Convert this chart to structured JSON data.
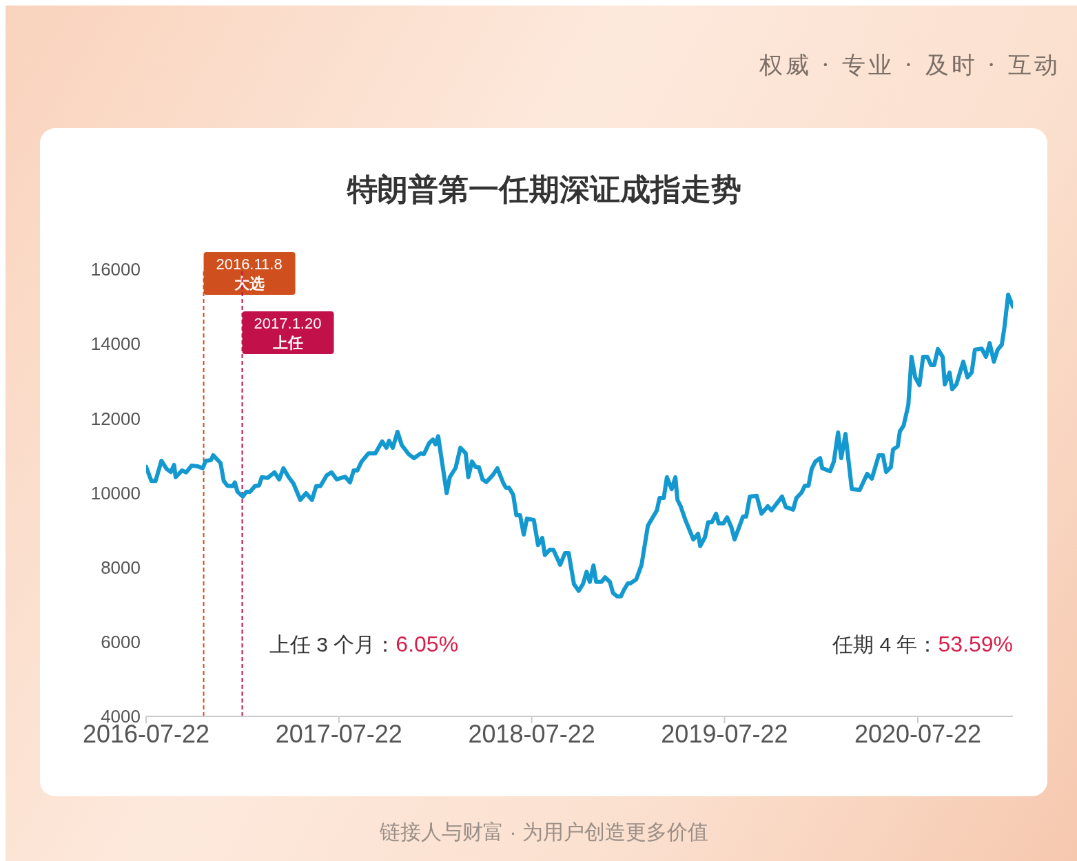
{
  "chart_data": {
    "type": "line",
    "title": "特朗普第一任期深证成指走势",
    "x": [
      "2016-07-22",
      "2016-08-01",
      "2016-08-09",
      "2016-08-20",
      "2016-08-30",
      "2016-09-07",
      "2016-09-13",
      "2016-09-16",
      "2016-09-28",
      "2016-10-06",
      "2016-10-16",
      "2016-10-28",
      "2016-11-06",
      "2016-11-12",
      "2016-11-22",
      "2016-11-26",
      "2016-12-10",
      "2016-12-16",
      "2016-12-23",
      "2017-01-02",
      "2017-01-06",
      "2017-01-11",
      "2017-01-21",
      "2017-01-28",
      "2017-02-04",
      "2017-02-13",
      "2017-02-21",
      "2017-02-26",
      "2017-03-09",
      "2017-03-22",
      "2017-03-31",
      "2017-04-08",
      "2017-04-18",
      "2017-04-27",
      "2017-05-10",
      "2017-05-21",
      "2017-06-01",
      "2017-06-09",
      "2017-06-17",
      "2017-06-29",
      "2017-07-08",
      "2017-07-18",
      "2017-07-26",
      "2017-08-03",
      "2017-08-12",
      "2017-08-19",
      "2017-08-26",
      "2017-09-03",
      "2017-09-16",
      "2017-09-29",
      "2017-10-12",
      "2017-10-20",
      "2017-10-25",
      "2017-11-01",
      "2017-11-10",
      "2017-11-18",
      "2017-12-01",
      "2017-12-11",
      "2017-12-24",
      "2017-12-30",
      "2018-01-09",
      "2018-01-16",
      "2018-01-21",
      "2018-01-26",
      "2018-02-11",
      "2018-02-17",
      "2018-02-28",
      "2018-03-09",
      "2018-03-19",
      "2018-03-24",
      "2018-03-31",
      "2018-04-07",
      "2018-04-13",
      "2018-04-20",
      "2018-04-27",
      "2018-05-09",
      "2018-05-18",
      "2018-05-29",
      "2018-06-03",
      "2018-06-09",
      "2018-06-17",
      "2018-06-23",
      "2018-06-30",
      "2018-07-07",
      "2018-07-13",
      "2018-07-26",
      "2018-08-03",
      "2018-08-11",
      "2018-08-16",
      "2018-08-25",
      "2018-09-01",
      "2018-09-14",
      "2018-09-23",
      "2018-09-30",
      "2018-10-10",
      "2018-10-19",
      "2018-10-27",
      "2018-11-03",
      "2018-11-09",
      "2018-11-16",
      "2018-11-21",
      "2018-12-01",
      "2018-12-08",
      "2018-12-17",
      "2018-12-23",
      "2018-12-31",
      "2019-01-07",
      "2019-01-12",
      "2019-01-20",
      "2019-01-25",
      "2019-02-05",
      "2019-02-15",
      "2019-02-27",
      "2019-03-16",
      "2019-03-21",
      "2019-03-29",
      "2019-04-04",
      "2019-04-13",
      "2019-04-20",
      "2019-04-24",
      "2019-04-30",
      "2019-05-09",
      "2019-05-24",
      "2019-06-02",
      "2019-06-06",
      "2019-06-15",
      "2019-06-21",
      "2019-06-28",
      "2019-07-06",
      "2019-07-11",
      "2019-07-20",
      "2019-07-27",
      "2019-08-04",
      "2019-08-10",
      "2019-08-26",
      "2019-09-01",
      "2019-09-08",
      "2019-09-21",
      "2019-09-30",
      "2019-10-12",
      "2019-10-19",
      "2019-11-08",
      "2019-11-15",
      "2019-11-29",
      "2019-12-05",
      "2019-12-15",
      "2019-12-21",
      "2019-12-28",
      "2020-01-03",
      "2020-01-10",
      "2020-01-19",
      "2020-01-23",
      "2020-02-07",
      "2020-02-14",
      "2020-02-22",
      "2020-02-28",
      "2020-03-07",
      "2020-03-19",
      "2020-04-03",
      "2020-04-17",
      "2020-04-26",
      "2020-05-09",
      "2020-05-17",
      "2020-05-23",
      "2020-06-01",
      "2020-06-05",
      "2020-06-14",
      "2020-06-18",
      "2020-06-25",
      "2020-07-04",
      "2020-07-10",
      "2020-07-17",
      "2020-07-25",
      "2020-08-01",
      "2020-08-09",
      "2020-08-16",
      "2020-08-22",
      "2020-08-29",
      "2020-09-07",
      "2020-09-11",
      "2020-09-20",
      "2020-09-25",
      "2020-10-03",
      "2020-10-16",
      "2020-10-24",
      "2020-11-01",
      "2020-11-07",
      "2020-11-20",
      "2020-11-28",
      "2020-12-05",
      "2020-12-13",
      "2020-12-20",
      "2020-12-28",
      "2021-01-02",
      "2021-01-09",
      "2021-01-18"
    ],
    "series": [
      {
        "color": "#1399cf",
        "values": [
          10700,
          10320,
          10320,
          10860,
          10640,
          10560,
          10750,
          10420,
          10600,
          10550,
          10730,
          10710,
          10660,
          10860,
          10880,
          11010,
          10800,
          10320,
          10190,
          10180,
          10280,
          10030,
          9900,
          10030,
          10030,
          10180,
          10200,
          10420,
          10400,
          10550,
          10360,
          10660,
          10420,
          10250,
          9810,
          9990,
          9810,
          10180,
          10180,
          10470,
          10550,
          10360,
          10400,
          10430,
          10280,
          10600,
          10600,
          10840,
          11060,
          11060,
          11380,
          11210,
          11400,
          11210,
          11640,
          11280,
          11040,
          10930,
          11060,
          11040,
          11340,
          11430,
          11300,
          11520,
          9990,
          10420,
          10670,
          11210,
          11060,
          10420,
          10840,
          10690,
          10690,
          10360,
          10290,
          10470,
          10660,
          10270,
          10140,
          10140,
          9950,
          9400,
          9400,
          8880,
          9310,
          9270,
          8600,
          8790,
          8330,
          8470,
          8470,
          8070,
          8380,
          8380,
          7550,
          7370,
          7550,
          7880,
          7610,
          8050,
          7610,
          7610,
          7730,
          7610,
          7310,
          7220,
          7220,
          7380,
          7570,
          7570,
          7680,
          8070,
          9120,
          9530,
          9860,
          9860,
          10420,
          10100,
          10420,
          9810,
          9640,
          9270,
          8750,
          8900,
          8570,
          8810,
          9210,
          9210,
          9440,
          9180,
          9180,
          9340,
          9080,
          8750,
          9360,
          9360,
          9900,
          9920,
          9440,
          9640,
          9530,
          9900,
          9620,
          9550,
          9860,
          10010,
          10190,
          10190,
          10640,
          10840,
          10930,
          10660,
          10580,
          10840,
          11620,
          10930,
          11580,
          10100,
          10080,
          10510,
          10380,
          11010,
          11010,
          10560,
          10690,
          11160,
          11250,
          11650,
          11800,
          12360,
          13650,
          13100,
          12890,
          13650,
          13650,
          13430,
          13430,
          13860,
          13650,
          12910,
          13230,
          12780,
          12910,
          13520,
          13100,
          13230,
          13840,
          13870,
          13650,
          14020,
          13520,
          13840,
          13980,
          14450,
          15320,
          15000
        ]
      }
    ],
    "xlim": [
      "2016-07-22",
      "2021-01-18"
    ],
    "xticks": [
      "2016-07-22",
      "2017-07-22",
      "2018-07-22",
      "2019-07-22",
      "2020-07-22"
    ],
    "ylim": [
      4000,
      16000
    ],
    "yticks": [
      4000,
      6000,
      8000,
      10000,
      12000,
      14000,
      16000
    ],
    "line_style": "solid",
    "ref_lines": [
      {
        "axis": "x",
        "value": "2016-11-08",
        "label": "2016.11.8\n大选",
        "color": "#cf4f1e",
        "line_style": "dashed"
      },
      {
        "axis": "x",
        "value": "2017-01-20",
        "label": "2017.1.20\n上任",
        "color": "#c2104a",
        "line_style": "dashed"
      }
    ],
    "annotations": [
      "上任 3 个月：6.05%",
      "任期 4 年：53.59%",
      "权威 · 专业 · 及时 · 互动",
      "链接人与财富 · 为用户创造更多价值"
    ]
  }
}
